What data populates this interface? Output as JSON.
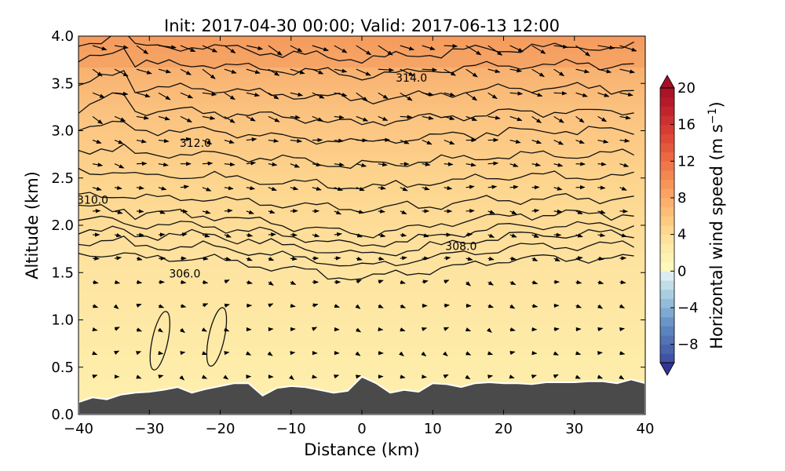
{
  "chart_data": {
    "type": "contour",
    "title": "Init: 2017-04-30 00:00; Valid: 2017-06-13 12:00",
    "xlabel": "Distance (km)",
    "ylabel": "Altitude (km)",
    "xlim": [
      -40,
      40
    ],
    "ylim": [
      0,
      4
    ],
    "x_ticks": [
      "−40",
      "−30",
      "−20",
      "−10",
      "0",
      "10",
      "20",
      "30",
      "40"
    ],
    "y_ticks": [
      "0.0",
      "0.5",
      "1.0",
      "1.5",
      "2.0",
      "2.5",
      "3.0",
      "3.5",
      "4.0"
    ],
    "colorbar": {
      "label": "Horizontal wind speed (m s",
      "label_superscript": "−1",
      "label_close": ")",
      "range": [
        -10,
        20
      ],
      "tick_labels": [
        "20",
        "16",
        "12",
        "8",
        "4",
        "0",
        "−4",
        "−8"
      ],
      "tick_values": [
        20,
        16,
        12,
        8,
        4,
        0,
        -4,
        -8
      ]
    },
    "isentrope_labels": [
      {
        "text": "314.0",
        "x": 7,
        "y": 3.52
      },
      {
        "text": "312.0",
        "x": -23.5,
        "y": 2.83
      },
      {
        "text": "310.0",
        "x": -38,
        "y": 2.23
      },
      {
        "text": "308.0",
        "x": 14,
        "y": 1.74
      },
      {
        "text": "306.0",
        "x": -25,
        "y": 1.45
      }
    ],
    "terrain": {
      "x": [
        -40,
        -38,
        -36,
        -34,
        -32,
        -30,
        -28,
        -26,
        -24,
        -22,
        -20,
        -18,
        -16,
        -14,
        -12,
        -10,
        -8,
        -6,
        -4,
        -2,
        0,
        2,
        4,
        6,
        8,
        10,
        12,
        14,
        16,
        18,
        20,
        22,
        24,
        26,
        28,
        30,
        32,
        34,
        36,
        38,
        40
      ],
      "z": [
        0.13,
        0.18,
        0.16,
        0.21,
        0.23,
        0.24,
        0.26,
        0.29,
        0.23,
        0.27,
        0.3,
        0.33,
        0.33,
        0.2,
        0.28,
        0.3,
        0.29,
        0.26,
        0.23,
        0.25,
        0.4,
        0.33,
        0.23,
        0.26,
        0.24,
        0.33,
        0.32,
        0.29,
        0.33,
        0.34,
        0.33,
        0.33,
        0.32,
        0.34,
        0.34,
        0.34,
        0.35,
        0.35,
        0.33,
        0.37,
        0.33
      ]
    }
  }
}
